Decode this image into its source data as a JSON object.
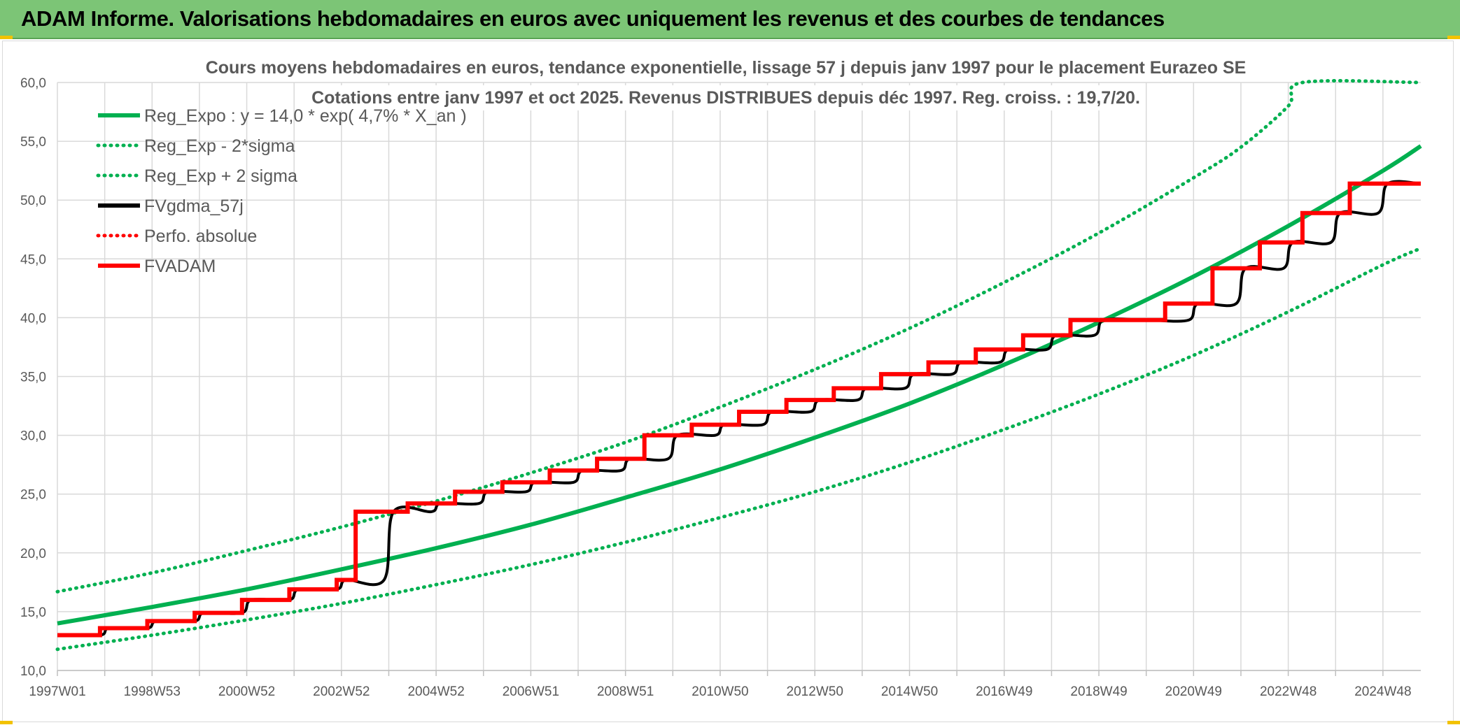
{
  "header": {
    "title": "ADAM Informe. Valorisations hebdomadaires en euros avec uniquement les revenus et des courbes de tendances"
  },
  "colors": {
    "header_bg": "#7cc576",
    "trend_green": "#00b050",
    "smoothed_black": "#000000",
    "adam_red": "#ff0000",
    "grid": "#d9d9d9"
  },
  "chart_data": {
    "type": "line",
    "title_lines": [
      "Cours moyens hebdomadaires en euros, tendance exponentielle, lissage 57 j depuis janv 1997 pour le placement Eurazeo SE",
      "Cotations entre janv 1997 et oct 2025. Revenus DISTRIBUES depuis déc 1997. Reg. croiss. : 19,7/20."
    ],
    "xlabel": "",
    "ylabel": "",
    "ylim": [
      10,
      60
    ],
    "xlim": [
      1997.0,
      2025.8
    ],
    "y_ticks": [
      "10,0",
      "15,0",
      "20,0",
      "25,0",
      "30,0",
      "35,0",
      "40,0",
      "45,0",
      "50,0",
      "55,0",
      "60,0"
    ],
    "x_tick_labels": [
      "1997W01",
      "1998W53",
      "2000W52",
      "2002W52",
      "2004W52",
      "2006W51",
      "2008W51",
      "2010W50",
      "2012W50",
      "2014W50",
      "2016W49",
      "2018W49",
      "2020W49",
      "2022W48",
      "2024W48"
    ],
    "grid": true,
    "legend_position": "top-left",
    "legend": [
      {
        "label": "Reg_Expo : y = 14,0 * exp( 4,7% *  X_an )",
        "color": "#00b050",
        "style": "solid"
      },
      {
        "label": "Reg_Exp - 2*sigma",
        "color": "#00b050",
        "style": "dotted"
      },
      {
        "label": "Reg_Exp + 2 sigma",
        "color": "#00b050",
        "style": "dotted"
      },
      {
        "label": "FVgdma_57j",
        "color": "#000000",
        "style": "solid"
      },
      {
        "label": "Perfo. absolue",
        "color": "#ff0000",
        "style": "dotted"
      },
      {
        "label": "FVADAM",
        "color": "#ff0000",
        "style": "solid"
      }
    ],
    "series": [
      {
        "name": "Reg_Expo : y = 14,0 * exp( 4,7% *  X_an )",
        "color": "#00b050",
        "style": "solid",
        "x": [
          1997.0,
          1999.0,
          2001.0,
          2003.0,
          2005.0,
          2007.0,
          2009.0,
          2011.0,
          2013.0,
          2015.0,
          2017.0,
          2019.0,
          2021.0,
          2023.0,
          2025.0,
          2025.8
        ],
        "y": [
          14.0,
          15.4,
          16.9,
          18.6,
          20.4,
          22.4,
          24.7,
          27.1,
          29.8,
          32.7,
          36.0,
          39.6,
          43.5,
          47.8,
          52.5,
          54.6
        ]
      },
      {
        "name": "Reg_Exp - 2*sigma",
        "color": "#00b050",
        "style": "dotted",
        "x": [
          1997.0,
          1999.0,
          2001.0,
          2003.0,
          2005.0,
          2007.0,
          2009.0,
          2011.0,
          2013.0,
          2015.0,
          2017.0,
          2019.0,
          2021.0,
          2023.0,
          2025.0,
          2025.8
        ],
        "y": [
          11.8,
          13.0,
          14.3,
          15.7,
          17.3,
          19.0,
          20.9,
          23.0,
          25.2,
          27.7,
          30.5,
          33.5,
          36.8,
          40.5,
          44.5,
          45.9
        ]
      },
      {
        "name": "Reg_Exp + 2 sigma",
        "color": "#00b050",
        "style": "dotted",
        "x": [
          1997.0,
          1999.0,
          2001.0,
          2003.0,
          2005.0,
          2007.0,
          2009.0,
          2011.0,
          2013.0,
          2015.0,
          2017.0,
          2019.0,
          2021.0,
          2022.0,
          2023.0,
          2023.3,
          2025.8
        ],
        "y": [
          16.7,
          18.3,
          20.2,
          22.2,
          24.4,
          26.8,
          29.4,
          32.4,
          35.6,
          39.1,
          43.0,
          47.2,
          51.9,
          54.5,
          58.0,
          60.0,
          60.0
        ]
      },
      {
        "name": "FVgdma_57j",
        "color": "#000000",
        "style": "solid",
        "x": [
          1997.0,
          1997.9,
          1998.1,
          1998.9,
          1999.1,
          1999.9,
          2000.1,
          2000.9,
          2001.1,
          2001.9,
          2002.1,
          2002.9,
          2003.1,
          2003.9,
          2004.1,
          2004.9,
          2005.1,
          2005.9,
          2006.1,
          2006.9,
          2007.1,
          2007.9,
          2008.1,
          2008.9,
          2009.1,
          2009.9,
          2010.1,
          2010.9,
          2011.1,
          2011.9,
          2012.1,
          2012.9,
          2013.1,
          2013.9,
          2014.1,
          2014.9,
          2015.1,
          2015.9,
          2016.1,
          2016.9,
          2017.1,
          2017.9,
          2018.1,
          2018.9,
          2019.1,
          2019.9,
          2020.1,
          2020.9,
          2021.1,
          2021.9,
          2022.1,
          2022.9,
          2023.1,
          2023.9,
          2024.1,
          2024.9,
          2025.1,
          2025.8
        ],
        "y": [
          13.0,
          13.0,
          13.6,
          13.6,
          14.2,
          14.2,
          14.9,
          14.9,
          16.0,
          16.0,
          16.9,
          16.9,
          17.7,
          17.7,
          23.5,
          23.5,
          24.2,
          24.2,
          25.2,
          25.2,
          26.0,
          26.0,
          27.0,
          27.0,
          28.0,
          28.0,
          30.0,
          30.0,
          30.9,
          30.9,
          32.0,
          32.0,
          33.0,
          33.0,
          34.0,
          34.0,
          35.2,
          35.2,
          36.2,
          36.2,
          37.3,
          37.3,
          38.5,
          38.5,
          39.8,
          39.8,
          39.8,
          39.8,
          41.2,
          41.2,
          44.2,
          44.2,
          46.4,
          46.4,
          48.9,
          48.9,
          51.4,
          51.4
        ]
      },
      {
        "name": "Perfo. absolue",
        "color": "#ff0000",
        "style": "dotted",
        "x": [],
        "y": []
      },
      {
        "name": "FVADAM",
        "color": "#ff0000",
        "style": "step",
        "x": [
          1997.0,
          1997.9,
          1997.9,
          1998.9,
          1998.9,
          1999.9,
          1999.9,
          2000.9,
          2000.9,
          2001.9,
          2001.9,
          2002.9,
          2002.9,
          2003.3,
          2003.3,
          2004.4,
          2004.4,
          2005.4,
          2005.4,
          2006.4,
          2006.4,
          2007.4,
          2007.4,
          2008.4,
          2008.4,
          2009.4,
          2009.4,
          2010.4,
          2010.4,
          2011.4,
          2011.4,
          2012.4,
          2012.4,
          2013.4,
          2013.4,
          2014.4,
          2014.4,
          2015.4,
          2015.4,
          2016.4,
          2016.4,
          2017.4,
          2017.4,
          2018.4,
          2018.4,
          2019.4,
          2019.4,
          2020.4,
          2020.4,
          2021.4,
          2021.4,
          2022.4,
          2022.4,
          2023.3,
          2023.3,
          2024.3,
          2024.3,
          2025.1,
          2025.1,
          2025.8
        ],
        "y": [
          13.0,
          13.0,
          13.6,
          13.6,
          14.2,
          14.2,
          14.9,
          14.9,
          16.0,
          16.0,
          16.9,
          16.9,
          17.7,
          17.7,
          23.5,
          23.5,
          24.2,
          24.2,
          25.2,
          25.2,
          26.0,
          26.0,
          27.0,
          27.0,
          28.0,
          28.0,
          30.0,
          30.0,
          30.9,
          30.9,
          32.0,
          32.0,
          33.0,
          33.0,
          34.0,
          34.0,
          35.2,
          35.2,
          36.2,
          36.2,
          37.3,
          37.3,
          38.5,
          38.5,
          39.8,
          39.8,
          39.8,
          39.8,
          41.2,
          41.2,
          44.2,
          44.2,
          46.4,
          46.4,
          48.9,
          48.9,
          51.4,
          51.4,
          51.4,
          51.4
        ]
      }
    ]
  }
}
